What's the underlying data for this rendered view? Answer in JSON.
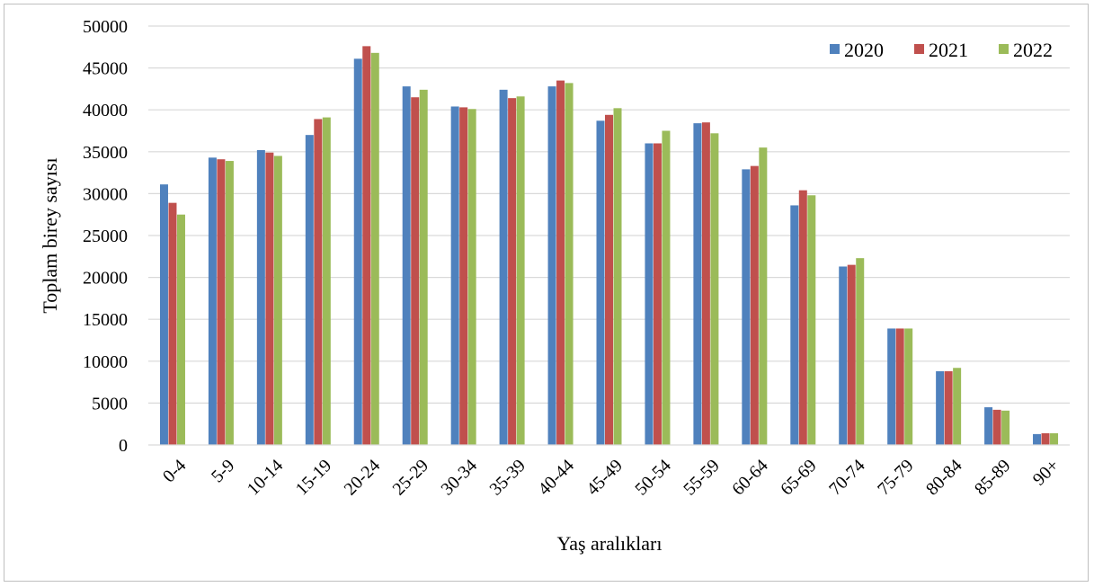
{
  "chart_data": {
    "type": "bar",
    "title": "",
    "xlabel": "Yaş aralıkları",
    "ylabel": "Toplam birey sayısı",
    "ylim": [
      0,
      50000
    ],
    "yticks": [
      0,
      5000,
      10000,
      15000,
      20000,
      25000,
      30000,
      35000,
      40000,
      45000,
      50000
    ],
    "grid": true,
    "legend_position": "top-right",
    "categories": [
      "0-4",
      "5-9",
      "10-14",
      "15-19",
      "20-24",
      "25-29",
      "30-34",
      "35-39",
      "40-44",
      "45-49",
      "50-54",
      "55-59",
      "60-64",
      "65-69",
      "70-74",
      "75-79",
      "80-84",
      "85-89",
      "90+"
    ],
    "series": [
      {
        "name": "2020",
        "color": "#4f81bd",
        "values": [
          31100,
          34300,
          35200,
          37000,
          46100,
          42800,
          40400,
          42400,
          42800,
          38700,
          36000,
          38400,
          32900,
          28600,
          21300,
          13900,
          8800,
          4500,
          1300
        ]
      },
      {
        "name": "2021",
        "color": "#c0504d",
        "values": [
          28900,
          34100,
          34900,
          38900,
          47600,
          41500,
          40300,
          41400,
          43500,
          39400,
          36000,
          38500,
          33300,
          30400,
          21500,
          13900,
          8800,
          4200,
          1400
        ]
      },
      {
        "name": "2022",
        "color": "#9bbb59",
        "values": [
          27500,
          33900,
          34500,
          39100,
          46800,
          42400,
          40100,
          41600,
          43200,
          40200,
          37500,
          37200,
          35500,
          29800,
          22300,
          13900,
          9200,
          4100,
          1400
        ]
      }
    ]
  }
}
